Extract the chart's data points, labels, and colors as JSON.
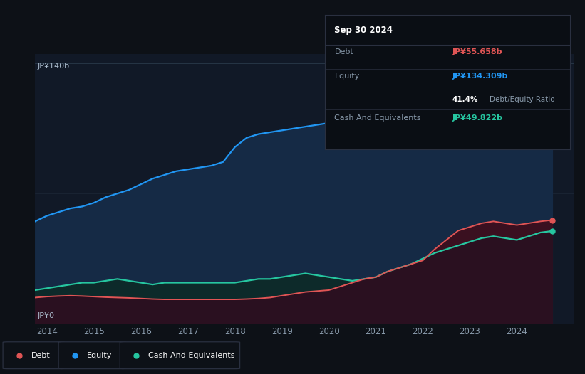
{
  "background_color": "#0d1117",
  "plot_bg_color": "#111927",
  "equity_color": "#2196f3",
  "debt_color": "#e05555",
  "cash_color": "#26c6a0",
  "equity_fill": "#152a45",
  "debt_fill": "#2a1020",
  "cash_fill": "#0d2a2a",
  "ylabel_top": "JP¥140b",
  "ylabel_bottom": "JP¥0",
  "x_ticks": [
    "2014",
    "2015",
    "2016",
    "2017",
    "2018",
    "2019",
    "2020",
    "2021",
    "2022",
    "2023",
    "2024"
  ],
  "tooltip_title": "Sep 30 2024",
  "tooltip_debt_label": "Debt",
  "tooltip_debt_value": "JP¥55.658b",
  "tooltip_equity_label": "Equity",
  "tooltip_equity_value": "JP¥134.309b",
  "tooltip_ratio_pct": "41.4%",
  "tooltip_ratio_text": "Debt/Equity Ratio",
  "tooltip_cash_label": "Cash And Equivalents",
  "tooltip_cash_value": "JP¥49.822b",
  "legend_debt": "Debt",
  "legend_equity": "Equity",
  "legend_cash": "Cash And Equivalents",
  "years": [
    2013.75,
    2014.0,
    2014.25,
    2014.5,
    2014.75,
    2015.0,
    2015.25,
    2015.5,
    2015.75,
    2016.0,
    2016.25,
    2016.5,
    2016.75,
    2017.0,
    2017.25,
    2017.5,
    2017.75,
    2018.0,
    2018.25,
    2018.5,
    2018.75,
    2019.0,
    2019.25,
    2019.5,
    2019.75,
    2020.0,
    2020.25,
    2020.5,
    2020.75,
    2021.0,
    2021.25,
    2021.5,
    2021.75,
    2022.0,
    2022.25,
    2022.5,
    2022.75,
    2023.0,
    2023.25,
    2023.5,
    2023.75,
    2024.0,
    2024.25,
    2024.5,
    2024.75
  ],
  "equity_values": [
    55,
    58,
    60,
    62,
    63,
    65,
    68,
    70,
    72,
    75,
    78,
    80,
    82,
    83,
    84,
    85,
    87,
    95,
    100,
    102,
    103,
    104,
    105,
    106,
    107,
    108,
    110,
    111,
    112,
    113,
    115,
    117,
    119,
    120,
    122,
    124,
    126,
    127,
    128,
    129,
    130,
    131,
    133,
    135,
    134.3
  ],
  "debt_values": [
    14,
    14.5,
    14.8,
    15,
    14.8,
    14.5,
    14.2,
    14,
    13.8,
    13.5,
    13.2,
    13,
    13,
    13,
    13,
    13,
    13,
    13,
    13.2,
    13.5,
    14,
    15,
    16,
    17,
    17.5,
    18,
    20,
    22,
    24,
    25,
    28,
    30,
    32,
    34,
    40,
    45,
    50,
    52,
    54,
    55,
    54,
    53,
    54,
    55,
    55.7
  ],
  "cash_values": [
    18,
    19,
    20,
    21,
    22,
    22,
    23,
    24,
    23,
    22,
    21,
    22,
    22,
    22,
    22,
    22,
    22,
    22,
    23,
    24,
    24,
    25,
    26,
    27,
    26,
    25,
    24,
    23,
    24,
    25,
    28,
    30,
    32,
    35,
    38,
    40,
    42,
    44,
    46,
    47,
    46,
    45,
    47,
    49,
    49.8
  ],
  "ylim": [
    0,
    145
  ],
  "xlim": [
    2013.75,
    2025.2
  ]
}
